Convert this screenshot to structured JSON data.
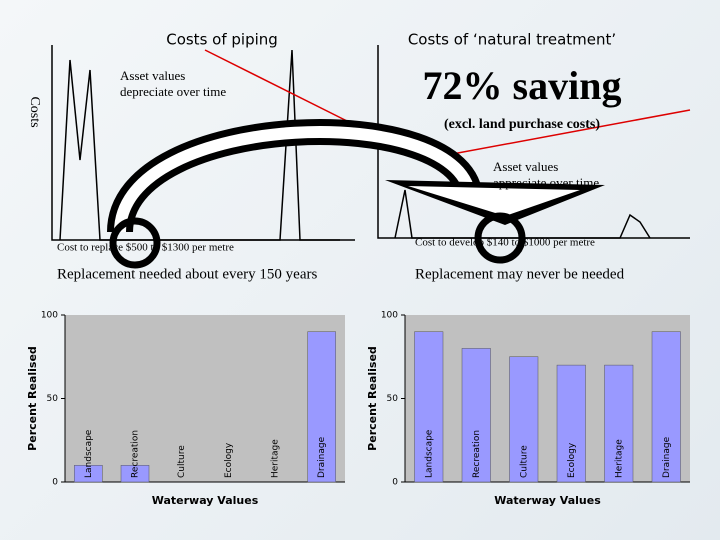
{
  "left_panel": {
    "title": "Costs of piping",
    "y_label": "Costs",
    "annotation": [
      "Asset values",
      "depreciate over time"
    ],
    "cost_note": "Cost to replace $500 to $1300 per metre",
    "replacement": "Replacement needed about every 150 years"
  },
  "right_panel": {
    "title": "Costs of ‘natural treatment’",
    "saving": "72% saving",
    "saving_note": "(excl. land purchase costs)",
    "annotation": [
      "Asset values",
      "appreciate over time"
    ],
    "cost_note": "Cost to develop $140 to $1000 per metre",
    "replacement": "Replacement may never be needed"
  },
  "chart_data": [
    {
      "type": "bar",
      "x_label": "Waterway Values",
      "y_label": "Percent Realised",
      "categories": [
        "Landscape",
        "Recreation",
        "Culture",
        "Ecology",
        "Heritage",
        "Drainage"
      ],
      "values": [
        10,
        10,
        0,
        0,
        0,
        90
      ],
      "color": "#9999ff",
      "ylim": [
        0,
        100
      ],
      "yticks": [
        0,
        50,
        100
      ]
    },
    {
      "type": "bar",
      "x_label": "Waterway Values",
      "y_label": "Percent Realised",
      "categories": [
        "Landscape",
        "Recreation",
        "Culture",
        "Ecology",
        "Heritage",
        "Drainage"
      ],
      "values": [
        90,
        80,
        75,
        70,
        70,
        90
      ],
      "color": "#9999ff",
      "ylim": [
        0,
        100
      ],
      "yticks": [
        0,
        50,
        100
      ]
    }
  ]
}
